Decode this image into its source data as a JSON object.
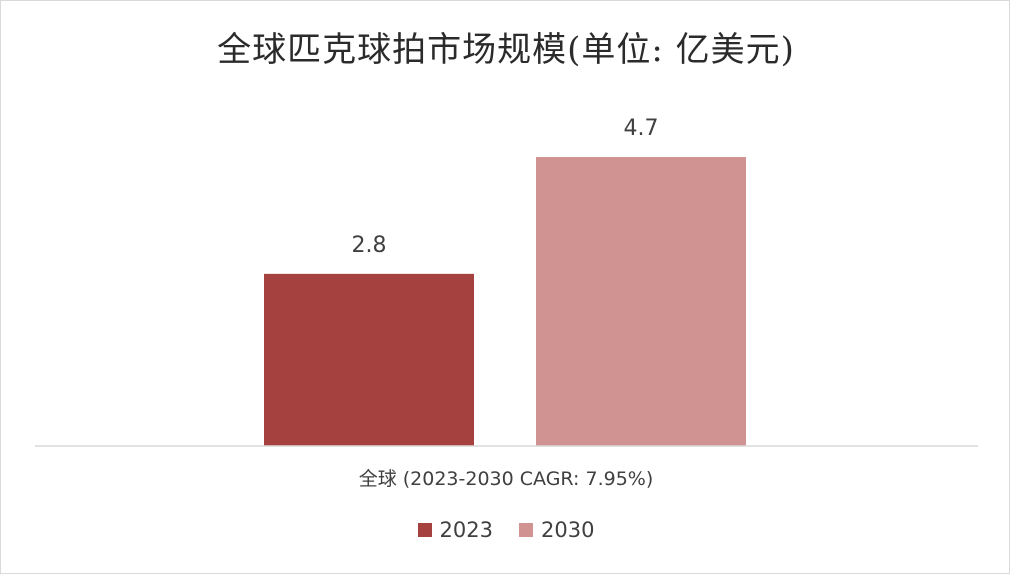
{
  "chart_data": {
    "type": "bar",
    "title": "全球匹克球拍市场规模(单位: 亿美元)",
    "categories": [
      "全球 (2023-2030 CAGR: 7.95%)"
    ],
    "series": [
      {
        "name": "2023",
        "values": [
          2.8
        ],
        "color": "#a5413f"
      },
      {
        "name": "2030",
        "values": [
          4.7
        ],
        "color": "#d09391"
      }
    ],
    "data_labels": [
      "2.8",
      "4.7"
    ],
    "ylim": [
      0,
      5.4
    ],
    "grid": false,
    "legend": "bottom-center",
    "axis_color": "#d9d9d9"
  }
}
